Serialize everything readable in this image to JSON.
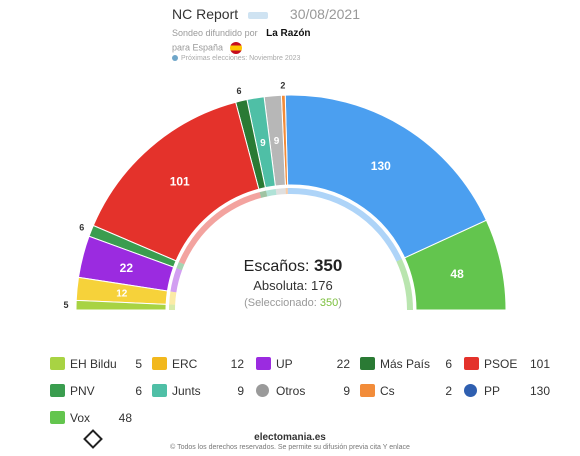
{
  "header": {
    "pollster": "NC Report",
    "date": "30/08/2021",
    "sondeo_label": "Sondeo difundido por",
    "sponsor": "La Razón",
    "region": "para España",
    "next_election": "Próximas elecciones: Noviembre 2023"
  },
  "center": {
    "seats_label": "Escaños:",
    "seats_total": "350",
    "majority": "Absoluta: 176",
    "selected_label": "(Seleccionado:",
    "selected_value": "350",
    "selected_close": ")"
  },
  "chart_data": {
    "type": "parliament",
    "total": 350,
    "majority": 176,
    "series": [
      {
        "name": "Vox",
        "value": 48,
        "color": "#63c54e"
      },
      {
        "name": "PP",
        "value": 130,
        "color": "#4b9ff0"
      },
      {
        "name": "Cs",
        "value": 2,
        "color": "#f28c3a"
      },
      {
        "name": "Otros",
        "value": 9,
        "color": "#b7b7b7"
      },
      {
        "name": "Junts",
        "value": 9,
        "color": "#4fbfa6"
      },
      {
        "name": "Más País",
        "value": 6,
        "color": "#2a7a34"
      },
      {
        "name": "PSOE",
        "value": 101,
        "color": "#e4322b"
      },
      {
        "name": "PNV",
        "value": 6,
        "color": "#3a9d4f"
      },
      {
        "name": "UP",
        "value": 22,
        "color": "#9b2be0"
      },
      {
        "name": "ERC",
        "value": 12,
        "color": "#f6d23a"
      },
      {
        "name": "EH Bildu",
        "value": 5,
        "color": "#a8d343"
      }
    ]
  },
  "legend": [
    {
      "name": "EH Bildu",
      "value": "5",
      "color": "#a8d343"
    },
    {
      "name": "ERC",
      "value": "12",
      "color": "#f2b81d"
    },
    {
      "name": "UP",
      "value": "22",
      "color": "#9b2be0"
    },
    {
      "name": "Más País",
      "value": "6",
      "color": "#2a7a34"
    },
    {
      "name": "PSOE",
      "value": "101",
      "color": "#e4322b"
    },
    {
      "name": "PNV",
      "value": "6",
      "color": "#3a9d4f"
    },
    {
      "name": "Junts",
      "value": "9",
      "color": "#4fbfa6"
    },
    {
      "name": "Otros",
      "value": "9",
      "color": "#9a9a9a"
    },
    {
      "name": "Cs",
      "value": "2",
      "color": "#f28c3a"
    },
    {
      "name": "PP",
      "value": "130",
      "color": "#2f5fb0"
    },
    {
      "name": "Vox",
      "value": "48",
      "color": "#63c54e"
    }
  ],
  "footer": {
    "site": "electomania.es",
    "copyright": "© Todos los derechos reservados. Se permite su difusión previa cita Y enlace"
  }
}
